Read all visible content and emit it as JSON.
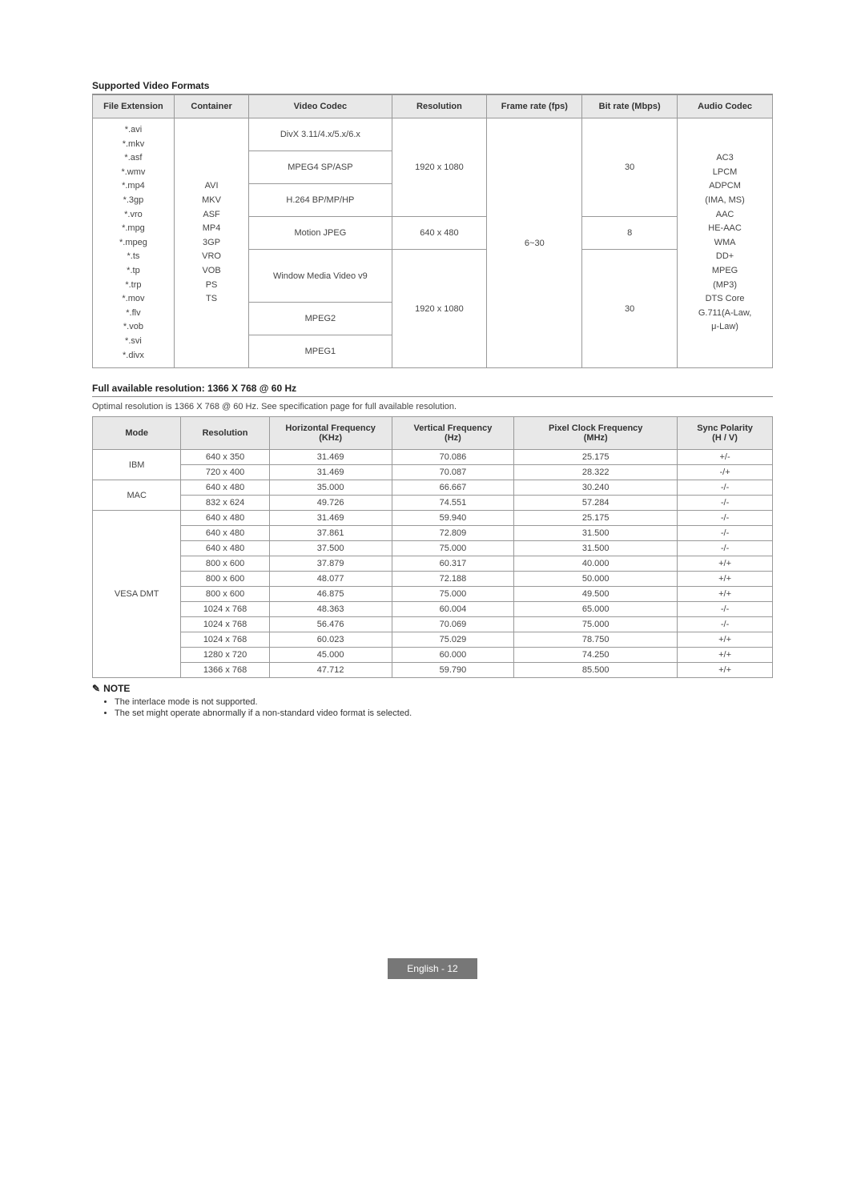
{
  "section1": {
    "title": "Supported Video Formats"
  },
  "videoTable": {
    "headers": [
      "File Extension",
      "Container",
      "Video Codec",
      "Resolution",
      "Frame rate (fps)",
      "Bit rate (Mbps)",
      "Audio Codec"
    ],
    "fileExt": "*.avi\n*.mkv\n*.asf\n*.wmv\n*.mp4\n*.3gp\n*.vro\n*.mpg\n*.mpeg\n*.ts\n*.tp\n*.trp\n*.mov\n*.flv\n*.vob\n*.svi\n*.divx",
    "container": "AVI\nMKV\nASF\nMP4\n3GP\nVRO\nVOB\nPS\nTS",
    "codec": {
      "r1": "DivX 3.11/4.x/5.x/6.x",
      "r2": "MPEG4 SP/ASP",
      "r3": "H.264 BP/MP/HP",
      "r4": "Motion JPEG",
      "r5": "Window Media Video v9",
      "r6": "MPEG2",
      "r7": "MPEG1"
    },
    "res": {
      "r1": "1920 x 1080",
      "r2": "640 x 480",
      "r3": "1920 x 1080"
    },
    "frate": "6~30",
    "brate": {
      "r1": "30",
      "r2": "8",
      "r3": "30"
    },
    "audio": "AC3\nLPCM\nADPCM\n(IMA, MS)\nAAC\nHE-AAC\nWMA\nDD+\nMPEG\n(MP3)\nDTS Core\nG.711(A-Law,\nμ-Law)",
    "colWidths": {
      "ext": "12%",
      "cont": "11%",
      "codec": "21%",
      "res": "14%",
      "frate": "14%",
      "brate": "14%",
      "audio": "14%"
    },
    "header_bg": "#e8e8e8",
    "border_color": "#999999"
  },
  "section2": {
    "title": "Full available resolution: 1366 X 768 @ 60 Hz",
    "subtitle": "Optimal resolution is 1366 X 768 @ 60 Hz. See specification page for full available resolution."
  },
  "resTable": {
    "headers": [
      "Mode",
      "Resolution",
      "Horizontal Frequency\n(KHz)",
      "Vertical Frequency\n(Hz)",
      "Pixel Clock Frequency\n(MHz)",
      "Sync Polarity\n(H / V)"
    ],
    "colWidths": {
      "mode": "13%",
      "res": "13%",
      "hf": "18%",
      "vf": "18%",
      "pcf": "24%",
      "sp": "14%"
    },
    "groups": {
      "ibm": {
        "label": "IBM",
        "rows": [
          [
            "640 x 350",
            "31.469",
            "70.086",
            "25.175",
            "+/-"
          ],
          [
            "720 x 400",
            "31.469",
            "70.087",
            "28.322",
            "-/+"
          ]
        ]
      },
      "mac": {
        "label": "MAC",
        "rows": [
          [
            "640 x 480",
            "35.000",
            "66.667",
            "30.240",
            "-/-"
          ],
          [
            "832 x 624",
            "49.726",
            "74.551",
            "57.284",
            "-/-"
          ]
        ]
      },
      "vesa": {
        "label": "VESA DMT",
        "rows": [
          [
            "640 x 480",
            "31.469",
            "59.940",
            "25.175",
            "-/-"
          ],
          [
            "640 x 480",
            "37.861",
            "72.809",
            "31.500",
            "-/-"
          ],
          [
            "640 x 480",
            "37.500",
            "75.000",
            "31.500",
            "-/-"
          ],
          [
            "800 x 600",
            "37.879",
            "60.317",
            "40.000",
            "+/+"
          ],
          [
            "800 x 600",
            "48.077",
            "72.188",
            "50.000",
            "+/+"
          ],
          [
            "800 x 600",
            "46.875",
            "75.000",
            "49.500",
            "+/+"
          ],
          [
            "1024 x 768",
            "48.363",
            "60.004",
            "65.000",
            "-/-"
          ],
          [
            "1024 x 768",
            "56.476",
            "70.069",
            "75.000",
            "-/-"
          ],
          [
            "1024 x 768",
            "60.023",
            "75.029",
            "78.750",
            "+/+"
          ],
          [
            "1280 x 720",
            "45.000",
            "60.000",
            "74.250",
            "+/+"
          ],
          [
            "1366 x 768",
            "47.712",
            "59.790",
            "85.500",
            "+/+"
          ]
        ]
      }
    }
  },
  "note": {
    "icon": "✎",
    "label": "NOTE",
    "items": [
      "The interlace mode is not supported.",
      "The set might operate abnormally if a non-standard video format is selected."
    ]
  },
  "footer": {
    "lang": "English",
    "sep": "-",
    "page": "12",
    "bg": "#777777",
    "fg": "#ffffff"
  }
}
